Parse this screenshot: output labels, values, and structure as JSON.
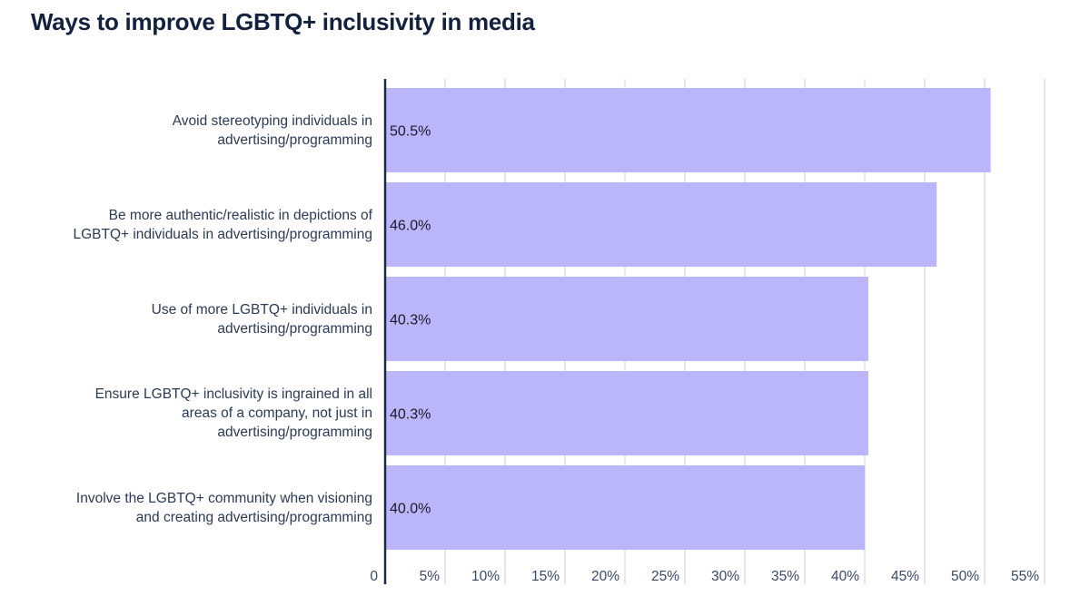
{
  "chart_data": {
    "type": "bar",
    "orientation": "horizontal",
    "title": "Ways to improve LGBTQ+ inclusivity in media",
    "xlabel": "",
    "ylabel": "",
    "categories": [
      "Avoid stereotyping individuals in advertising/programming",
      "Be more authentic/realistic in depictions of LGBTQ+ individuals in advertising/programming",
      "Use of more LGBTQ+ individuals in advertising/programming",
      "Ensure LGBTQ+ inclusivity is ingrained in all areas of a company, not just in advertising/programming",
      "Involve the LGBTQ+ community when visioning and creating advertising/programming"
    ],
    "category_lines": [
      [
        "Avoid stereotyping individuals in",
        "advertising/programming"
      ],
      [
        "Be more authentic/realistic in depictions of",
        "LGBTQ+ individuals in advertising/programming"
      ],
      [
        "Use of more LGBTQ+ individuals in",
        "advertising/programming"
      ],
      [
        "Ensure LGBTQ+ inclusivity is ingrained in all",
        "areas of a company, not just in",
        "advertising/programming"
      ],
      [
        "Involve the LGBTQ+ community when visioning",
        "and creating advertising/programming"
      ]
    ],
    "values": [
      50.5,
      46.0,
      40.3,
      40.3,
      40.0
    ],
    "data_labels": [
      "50.5%",
      "46.0%",
      "40.3%",
      "40.3%",
      "40.0%"
    ],
    "xlim": [
      0,
      55
    ],
    "x_ticks": [
      0,
      5,
      10,
      15,
      20,
      25,
      30,
      35,
      40,
      45,
      50,
      55
    ],
    "x_tick_labels": [
      "0",
      "5%",
      "10%",
      "15%",
      "20%",
      "25%",
      "30%",
      "35%",
      "40%",
      "45%",
      "50%",
      "55%"
    ],
    "grid": true,
    "legend": "none",
    "colors": {
      "bar": "#bbb5f9",
      "axis": "#1b2a4a",
      "grid": "#dddde6",
      "text": "#2b3a55",
      "title": "#12213f"
    }
  }
}
